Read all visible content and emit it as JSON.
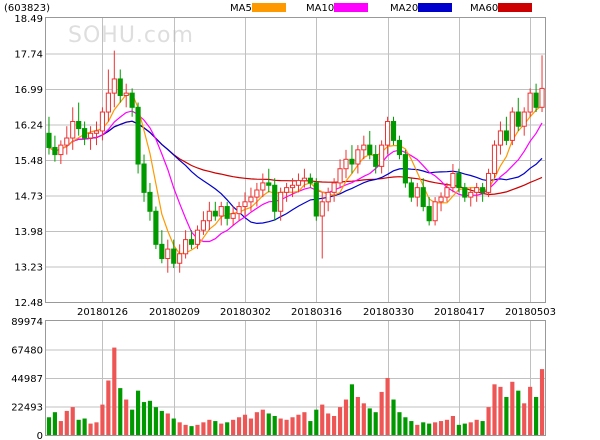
{
  "header": {
    "code": "(603823)",
    "legend": [
      {
        "label": "MA5",
        "color": "#ff9900"
      },
      {
        "label": "MA10",
        "color": "#ff00ff"
      },
      {
        "label": "MA20",
        "color": "#0000cc"
      },
      {
        "label": "MA60",
        "color": "#cc0000"
      }
    ]
  },
  "watermark": "SOHU.com",
  "colors": {
    "up": "#ee3333",
    "down": "#009900",
    "vol_up": "#ee5555",
    "vol_down": "#009900",
    "grid": "#c0c0c0",
    "frame": "#999999"
  },
  "chart_data": [
    {
      "type": "candlestick",
      "title": "",
      "ylim": [
        12.48,
        18.49
      ],
      "y_ticks": [
        "18.49",
        "17.74",
        "16.99",
        "16.24",
        "15.48",
        "14.73",
        "13.98",
        "13.23",
        "12.48"
      ],
      "x_ticks": [
        {
          "index": 9,
          "label": "20180126"
        },
        {
          "index": 21,
          "label": "20180209"
        },
        {
          "index": 33,
          "label": "20180302"
        },
        {
          "index": 45,
          "label": "20180316"
        },
        {
          "index": 57,
          "label": "20180330"
        },
        {
          "index": 69,
          "label": "20180417"
        },
        {
          "index": 81,
          "label": "20180503"
        }
      ],
      "candles": [
        [
          16.05,
          16.4,
          15.6,
          15.75
        ],
        [
          15.75,
          16.0,
          15.45,
          15.6
        ],
        [
          15.6,
          15.9,
          15.4,
          15.8
        ],
        [
          15.8,
          16.2,
          15.6,
          15.95
        ],
        [
          15.95,
          16.6,
          15.7,
          16.3
        ],
        [
          16.3,
          16.7,
          16.0,
          16.15
        ],
        [
          16.15,
          16.3,
          15.8,
          15.95
        ],
        [
          15.95,
          16.2,
          15.7,
          16.05
        ],
        [
          16.05,
          16.3,
          15.8,
          16.1
        ],
        [
          16.1,
          16.6,
          15.9,
          16.5
        ],
        [
          16.5,
          17.4,
          16.3,
          16.9
        ],
        [
          16.9,
          17.8,
          16.6,
          17.2
        ],
        [
          17.2,
          17.4,
          16.7,
          16.85
        ],
        [
          16.85,
          17.1,
          16.6,
          16.9
        ],
        [
          16.9,
          17.0,
          16.4,
          16.6
        ],
        [
          16.6,
          16.7,
          15.2,
          15.4
        ],
        [
          15.4,
          15.6,
          14.6,
          14.8
        ],
        [
          14.8,
          15.0,
          14.2,
          14.4
        ],
        [
          14.4,
          14.5,
          13.6,
          13.7
        ],
        [
          13.7,
          14.0,
          13.3,
          13.4
        ],
        [
          13.4,
          13.8,
          13.1,
          13.6
        ],
        [
          13.6,
          13.8,
          13.2,
          13.3
        ],
        [
          13.3,
          13.7,
          13.1,
          13.5
        ],
        [
          13.5,
          14.0,
          13.4,
          13.8
        ],
        [
          13.8,
          14.0,
          13.6,
          13.7
        ],
        [
          13.7,
          14.1,
          13.6,
          14.0
        ],
        [
          14.0,
          14.4,
          13.9,
          14.2
        ],
        [
          14.2,
          14.6,
          14.0,
          14.4
        ],
        [
          14.4,
          14.6,
          14.2,
          14.3
        ],
        [
          14.3,
          14.6,
          14.1,
          14.5
        ],
        [
          14.5,
          14.6,
          14.1,
          14.25
        ],
        [
          14.25,
          14.5,
          14.1,
          14.35
        ],
        [
          14.35,
          14.6,
          14.2,
          14.5
        ],
        [
          14.5,
          14.8,
          14.3,
          14.6
        ],
        [
          14.6,
          14.9,
          14.4,
          14.7
        ],
        [
          14.7,
          15.0,
          14.5,
          14.85
        ],
        [
          14.85,
          15.2,
          14.7,
          15.0
        ],
        [
          15.0,
          15.3,
          14.8,
          14.95
        ],
        [
          14.95,
          15.1,
          14.2,
          14.4
        ],
        [
          14.4,
          14.9,
          14.2,
          14.8
        ],
        [
          14.8,
          15.0,
          14.6,
          14.9
        ],
        [
          14.9,
          15.1,
          14.7,
          14.95
        ],
        [
          14.95,
          15.2,
          14.8,
          15.05
        ],
        [
          15.05,
          15.3,
          14.9,
          15.1
        ],
        [
          15.1,
          15.2,
          14.9,
          15.0
        ],
        [
          15.0,
          15.1,
          14.2,
          14.3
        ],
        [
          14.3,
          14.8,
          13.4,
          14.6
        ],
        [
          14.6,
          14.9,
          14.4,
          14.8
        ],
        [
          14.8,
          15.1,
          14.6,
          15.0
        ],
        [
          15.0,
          15.5,
          14.9,
          15.3
        ],
        [
          15.3,
          15.7,
          15.1,
          15.5
        ],
        [
          15.5,
          15.8,
          15.2,
          15.4
        ],
        [
          15.4,
          15.8,
          15.2,
          15.7
        ],
        [
          15.7,
          16.0,
          15.5,
          15.8
        ],
        [
          15.8,
          16.1,
          15.5,
          15.6
        ],
        [
          15.6,
          15.8,
          15.2,
          15.35
        ],
        [
          15.35,
          15.9,
          15.2,
          15.8
        ],
        [
          15.8,
          16.4,
          15.6,
          16.3
        ],
        [
          16.3,
          16.4,
          15.8,
          15.9
        ],
        [
          15.9,
          16.0,
          15.5,
          15.6
        ],
        [
          15.6,
          15.7,
          14.9,
          15.0
        ],
        [
          15.0,
          15.1,
          14.6,
          14.7
        ],
        [
          14.7,
          15.0,
          14.5,
          14.9
        ],
        [
          14.9,
          15.1,
          14.4,
          14.5
        ],
        [
          14.5,
          14.7,
          14.1,
          14.2
        ],
        [
          14.2,
          14.7,
          14.1,
          14.6
        ],
        [
          14.6,
          14.8,
          14.4,
          14.7
        ],
        [
          14.7,
          15.0,
          14.6,
          14.9
        ],
        [
          14.9,
          15.4,
          14.8,
          15.2
        ],
        [
          15.2,
          15.3,
          14.8,
          14.9
        ],
        [
          14.9,
          15.0,
          14.6,
          14.7
        ],
        [
          14.7,
          14.9,
          14.5,
          14.8
        ],
        [
          14.8,
          15.0,
          14.6,
          14.9
        ],
        [
          14.9,
          15.0,
          14.6,
          14.8
        ],
        [
          14.8,
          15.3,
          14.7,
          15.2
        ],
        [
          15.2,
          15.9,
          15.1,
          15.8
        ],
        [
          15.8,
          16.3,
          15.6,
          16.1
        ],
        [
          16.1,
          16.4,
          15.8,
          15.9
        ],
        [
          15.9,
          16.6,
          15.8,
          16.5
        ],
        [
          16.5,
          16.8,
          16.1,
          16.2
        ],
        [
          16.2,
          16.6,
          16.0,
          16.5
        ],
        [
          16.5,
          17.0,
          16.4,
          16.9
        ],
        [
          16.9,
          17.1,
          16.5,
          16.6
        ],
        [
          16.6,
          17.7,
          16.5,
          17.0
        ]
      ]
    },
    {
      "type": "bar",
      "title": "",
      "ylim": [
        0,
        89974
      ],
      "y_ticks": [
        "89974",
        "67480",
        "44987",
        "22493",
        "0"
      ],
      "volumes": [
        14000,
        18000,
        11000,
        19000,
        22000,
        12000,
        13000,
        9000,
        10000,
        24000,
        43000,
        69000,
        37000,
        28000,
        20000,
        35000,
        26000,
        27000,
        22000,
        19000,
        17000,
        13000,
        10000,
        8000,
        7000,
        8000,
        10000,
        12000,
        11000,
        9000,
        10000,
        12000,
        14000,
        16000,
        13000,
        18000,
        20000,
        17000,
        15000,
        13000,
        12000,
        14000,
        16000,
        18000,
        11000,
        20000,
        24000,
        17000,
        15000,
        22000,
        28000,
        40000,
        30000,
        25000,
        21000,
        18000,
        34000,
        45000,
        28000,
        18000,
        14000,
        11000,
        8000,
        10000,
        9000,
        10000,
        11000,
        12000,
        15000,
        8000,
        9000,
        10000,
        12000,
        11000,
        22000,
        40000,
        38000,
        30000,
        42000,
        35000,
        25000,
        38000,
        30000,
        52000
      ]
    }
  ]
}
